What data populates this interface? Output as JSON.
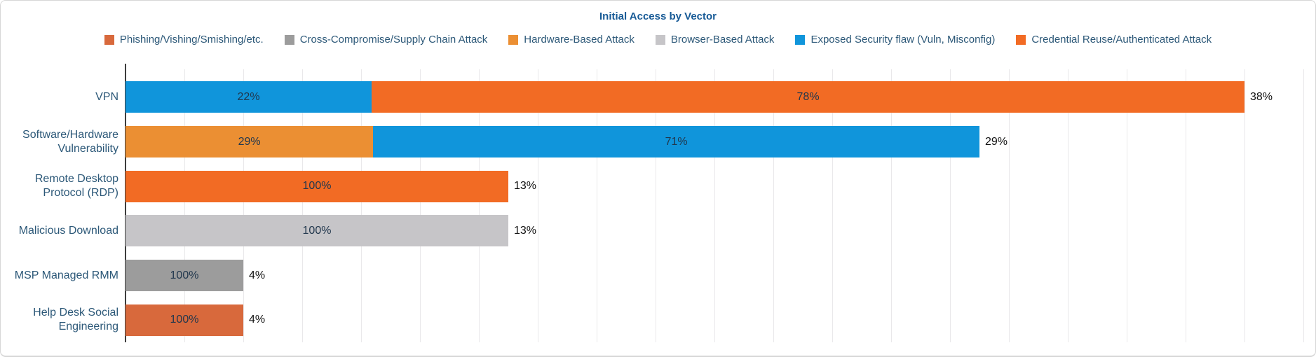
{
  "series_colors": {
    "Phishing/Vishing/Smishing/etc.": "#d8693c",
    "Cross-Compromise/Supply Chain Attack": "#9c9c9c",
    "Hardware-Based Attack": "#eb8f33",
    "Browser-Based Attack": "#c6c5c8",
    "Exposed Security flaw (Vuln, Misconfig)": "#1095db",
    "Credential Reuse/Authenticated Attack": "#f26b24"
  },
  "legend": [
    "Phishing/Vishing/Smishing/etc.",
    "Cross-Compromise/Supply Chain Attack",
    "Hardware-Based Attack",
    "Browser-Based Attack",
    "Exposed Security flaw (Vuln, Misconfig)",
    "Credential Reuse/Authenticated Attack"
  ],
  "chart_data": {
    "type": "bar",
    "orientation": "horizontal",
    "stacked": true,
    "title": "Initial Access by Vector",
    "legend_position": "top",
    "grid": "vertical",
    "x_axis": {
      "min": 0,
      "max": 40,
      "gridline_step": 2,
      "unit": "% of incidents",
      "tick_labels_visible": false
    },
    "categories": [
      "VPN",
      "Software/Hardware Vulnerability",
      "Remote Desktop Protocol (RDP)",
      "Malicious Download",
      "MSP Managed RMM",
      "Help Desk Social Engineering"
    ],
    "bars": [
      {
        "category": "VPN",
        "total_pct": 38,
        "total_label": "38%",
        "segments": [
          {
            "series": "Exposed Security flaw (Vuln, Misconfig)",
            "pct": 22,
            "label": "22%"
          },
          {
            "series": "Credential Reuse/Authenticated Attack",
            "pct": 78,
            "label": "78%"
          }
        ]
      },
      {
        "category": "Software/Hardware Vulnerability",
        "total_pct": 29,
        "total_label": "29%",
        "segments": [
          {
            "series": "Hardware-Based Attack",
            "pct": 29,
            "label": "29%"
          },
          {
            "series": "Exposed Security flaw (Vuln, Misconfig)",
            "pct": 71,
            "label": "71%"
          }
        ]
      },
      {
        "category": "Remote Desktop Protocol (RDP)",
        "total_pct": 13,
        "total_label": "13%",
        "segments": [
          {
            "series": "Credential Reuse/Authenticated Attack",
            "pct": 100,
            "label": "100%"
          }
        ]
      },
      {
        "category": "Malicious Download",
        "total_pct": 13,
        "total_label": "13%",
        "segments": [
          {
            "series": "Browser-Based Attack",
            "pct": 100,
            "label": "100%"
          }
        ]
      },
      {
        "category": "MSP Managed RMM",
        "total_pct": 4,
        "total_label": "4%",
        "segments": [
          {
            "series": "Cross-Compromise/Supply Chain Attack",
            "pct": 100,
            "label": "100%"
          }
        ]
      },
      {
        "category": "Help Desk Social Engineering",
        "total_pct": 4,
        "total_label": "4%",
        "segments": [
          {
            "series": "Phishing/Vishing/Smishing/etc.",
            "pct": 100,
            "label": "100%"
          }
        ]
      }
    ]
  }
}
